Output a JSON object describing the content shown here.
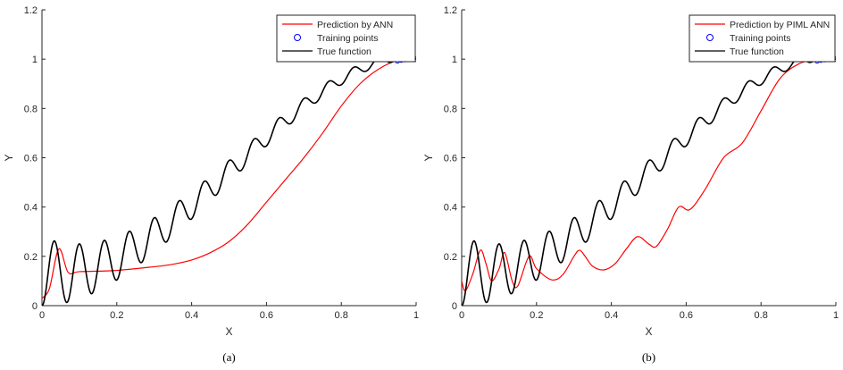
{
  "colors": {
    "prediction": "#ff0000",
    "training": "#0000ff",
    "true_function": "#000000",
    "axes": "#262626"
  },
  "chart_data": [
    {
      "type": "line",
      "caption": "(a)",
      "xlabel": "X",
      "ylabel": "Y",
      "xlim": [
        0,
        1
      ],
      "ylim": [
        0,
        1.2
      ],
      "x_ticks": [
        0,
        0.2,
        0.4,
        0.6,
        0.8,
        1
      ],
      "x_tick_labels": [
        "0",
        "0.2",
        "0.4",
        "0.6",
        "0.8",
        "1"
      ],
      "y_ticks": [
        0,
        0.2,
        0.4,
        0.6,
        0.8,
        1,
        1.2
      ],
      "y_tick_labels": [
        "0",
        "0.2",
        "0.4",
        "0.6",
        "0.8",
        "1",
        "1.2"
      ],
      "legend_position": "top-right",
      "grid": false,
      "series": [
        {
          "name": "Prediction by ANN",
          "kind": "line",
          "color": "#ff0000",
          "x": [
            0,
            0.02,
            0.045,
            0.07,
            0.1,
            0.2,
            0.3,
            0.35,
            0.4,
            0.45,
            0.5,
            0.55,
            0.6,
            0.65,
            0.7,
            0.75,
            0.8,
            0.85,
            0.9,
            0.95,
            1
          ],
          "y": [
            0.03,
            0.07,
            0.23,
            0.135,
            0.138,
            0.143,
            0.158,
            0.168,
            0.185,
            0.215,
            0.26,
            0.33,
            0.42,
            0.51,
            0.6,
            0.7,
            0.81,
            0.9,
            0.96,
            0.995,
            1.005
          ]
        },
        {
          "name": "Training points",
          "kind": "markers",
          "color": "#0000ff",
          "x": [
            0.95,
            0.96,
            0.97,
            0.98,
            0.99,
            1
          ],
          "y": [
            0.993,
            0.996,
            0.998,
            0.999,
            1.0,
            1.0
          ]
        },
        {
          "name": "True function",
          "kind": "function",
          "color": "#000000"
        }
      ]
    },
    {
      "type": "line",
      "caption": "(b)",
      "xlabel": "X",
      "ylabel": "Y",
      "xlim": [
        0,
        1
      ],
      "ylim": [
        0,
        1.2
      ],
      "x_ticks": [
        0,
        0.2,
        0.4,
        0.6,
        0.8,
        1
      ],
      "x_tick_labels": [
        "0",
        "0.2",
        "0.4",
        "0.6",
        "0.8",
        "1"
      ],
      "y_ticks": [
        0,
        0.2,
        0.4,
        0.6,
        0.8,
        1,
        1.2
      ],
      "y_tick_labels": [
        "0",
        "0.2",
        "0.4",
        "0.6",
        "0.8",
        "1",
        "1.2"
      ],
      "legend_position": "top-right",
      "grid": false,
      "series": [
        {
          "name": "Prediction by PIML ANN",
          "kind": "line",
          "color": "#ff0000",
          "x": [
            0,
            0.01,
            0.03,
            0.05,
            0.065,
            0.08,
            0.1,
            0.115,
            0.135,
            0.15,
            0.18,
            0.2,
            0.24,
            0.27,
            0.3,
            0.315,
            0.33,
            0.35,
            0.38,
            0.41,
            0.44,
            0.47,
            0.5,
            0.52,
            0.55,
            0.58,
            0.61,
            0.65,
            0.7,
            0.75,
            0.8,
            0.85,
            0.9,
            0.95,
            1
          ],
          "y": [
            0.1,
            0.06,
            0.13,
            0.225,
            0.17,
            0.1,
            0.15,
            0.215,
            0.1,
            0.08,
            0.2,
            0.15,
            0.105,
            0.125,
            0.2,
            0.225,
            0.2,
            0.16,
            0.145,
            0.17,
            0.23,
            0.28,
            0.25,
            0.24,
            0.31,
            0.4,
            0.39,
            0.47,
            0.6,
            0.66,
            0.79,
            0.92,
            0.98,
            1.0,
            1.005
          ]
        },
        {
          "name": "Training points",
          "kind": "markers",
          "color": "#0000ff",
          "x": [
            0.95,
            0.96,
            0.97,
            0.98,
            0.99,
            1
          ],
          "y": [
            0.993,
            0.996,
            0.998,
            0.999,
            1.0,
            1.0
          ]
        },
        {
          "name": "True function",
          "kind": "function",
          "color": "#000000"
        }
      ]
    }
  ]
}
